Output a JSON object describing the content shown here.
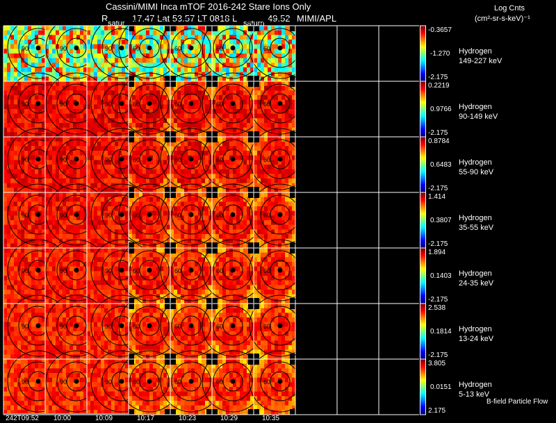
{
  "title": "Cassini/MIMI Inca mTOF  2016-242   Stare   Ions Only",
  "subtitle": {
    "r_label": "R",
    "text": "17.47 Lat 53.57 LT 0818 L",
    "l_value": "49.52",
    "source": "MIMI/APL"
  },
  "units": {
    "line1": "Log Cnts",
    "line2": "(cm²-sr-s-keV)⁻¹"
  },
  "saturn_labels": [
    "satur",
    "saturn"
  ],
  "footer_note": "B-field Particle Flow",
  "chart_data": {
    "type": "heatmap",
    "title": "Cassini/MIMI Inca mTOF 2016-242 Stare Ions Only",
    "time_ticks": [
      "242T09:52",
      "10:00",
      "10:09",
      "10:17",
      "10:23",
      "10:29",
      "10:35"
    ],
    "contour_levels": [
      "150",
      "120",
      "90",
      "60",
      "30"
    ],
    "rows": [
      {
        "species": "Hydrogen",
        "energy": "149-227 keV",
        "cmax": "-0.3657",
        "cmid": "-1.270",
        "cmin": "-2.175"
      },
      {
        "species": "Hydrogen",
        "energy": "90-149 keV",
        "cmax": "0.2219",
        "cmid": "0.9766",
        "cmin": "-2.175"
      },
      {
        "species": "Hydrogen",
        "energy": "55-90 keV",
        "cmax": "0.8784",
        "cmid": "0.6483",
        "cmin": "-2.175"
      },
      {
        "species": "Hydrogen",
        "energy": "35-55 keV",
        "cmax": "1.414",
        "cmid": "0.3807",
        "cmin": "-2.175"
      },
      {
        "species": "Hydrogen",
        "energy": "24-35 keV",
        "cmax": "1.894",
        "cmid": "0.1403",
        "cmin": "-2.175"
      },
      {
        "species": "Hydrogen",
        "energy": "13-24 keV",
        "cmax": "2.538",
        "cmid": "0.1814",
        "cmin": "-2.175"
      },
      {
        "species": "Hydrogen",
        "energy": "5-13 keV",
        "cmax": "3.805",
        "cmid": "0.0151",
        "cmin": "2.175"
      }
    ]
  }
}
